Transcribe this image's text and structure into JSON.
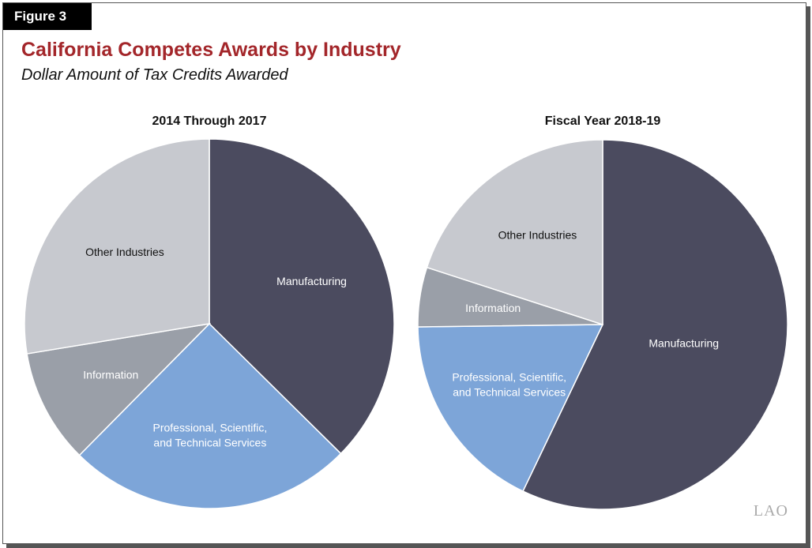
{
  "figure_label": "Figure 3",
  "title": "California Competes Awards by Industry",
  "subtitle": "Dollar Amount of Tax Credits Awarded",
  "logo": "LAO",
  "colors": {
    "Manufacturing": "#4b4b5f",
    "Professional": "#7da5d8",
    "Information": "#9a9fa8",
    "Other": "#c7c9cf",
    "title": "#a3262a"
  },
  "chart_data": [
    {
      "type": "pie",
      "title": "2014 Through 2017",
      "slices": [
        {
          "label": "Manufacturing",
          "value": 37.4,
          "color_key": "Manufacturing",
          "label_color": "#ffffff"
        },
        {
          "label": "Professional, Scientific,\nand Technical Services",
          "value": 25.0,
          "color_key": "Professional",
          "label_color": "#ffffff"
        },
        {
          "label": "Information",
          "value": 10.0,
          "color_key": "Information",
          "label_color": "#ffffff"
        },
        {
          "label": "Other Industries",
          "value": 27.6,
          "color_key": "Other",
          "label_color": "#111111"
        }
      ]
    },
    {
      "type": "pie",
      "title": "Fiscal Year 2018-19",
      "slices": [
        {
          "label": "Manufacturing",
          "value": 57.1,
          "color_key": "Manufacturing",
          "label_color": "#ffffff"
        },
        {
          "label": "Professional, Scientific,\nand Technical Services",
          "value": 17.7,
          "color_key": "Professional",
          "label_color": "#ffffff"
        },
        {
          "label": "Information",
          "value": 5.2,
          "color_key": "Information",
          "label_color": "#ffffff"
        },
        {
          "label": "Other Industries",
          "value": 20.0,
          "color_key": "Other",
          "label_color": "#111111"
        }
      ]
    }
  ]
}
